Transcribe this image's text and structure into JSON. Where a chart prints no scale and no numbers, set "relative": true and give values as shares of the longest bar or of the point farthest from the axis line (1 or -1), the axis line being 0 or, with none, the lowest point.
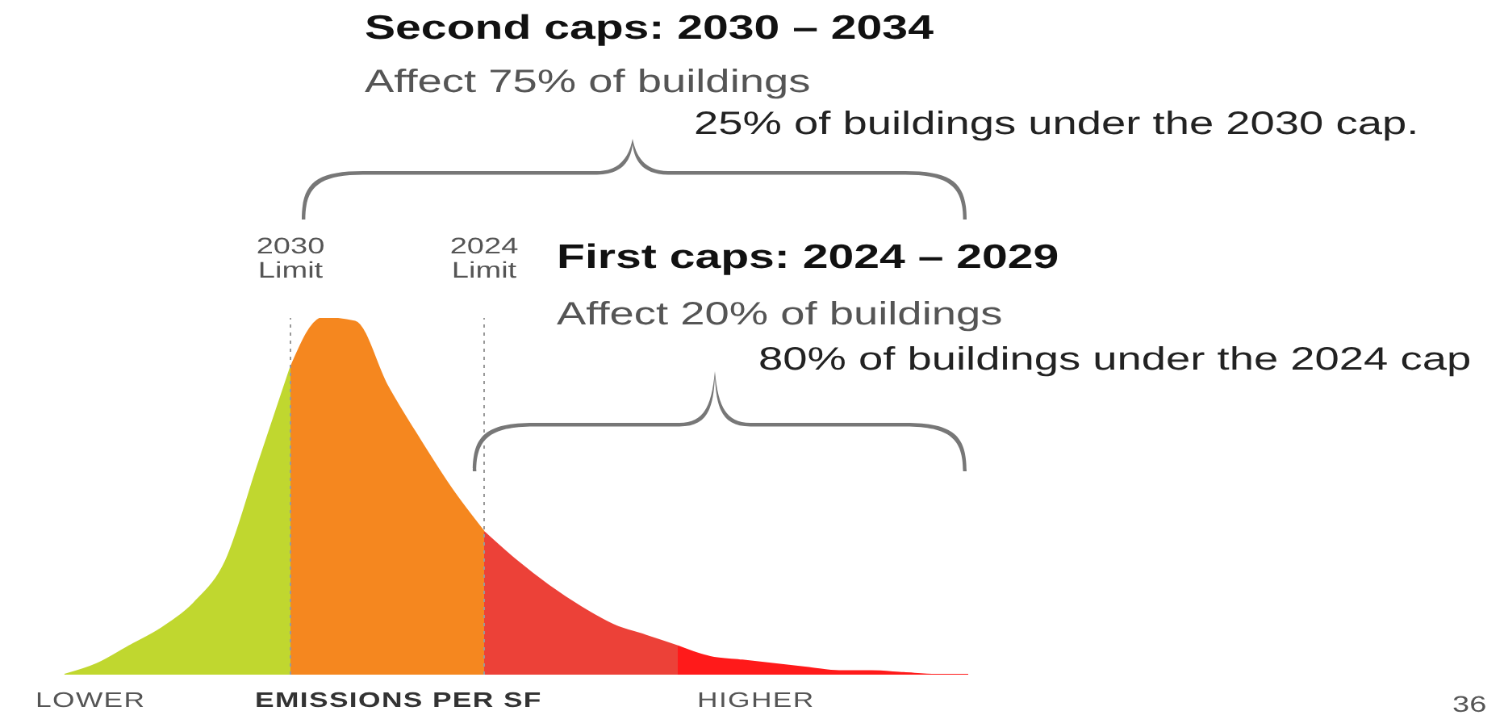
{
  "chart_data": {
    "type": "area",
    "relative": true,
    "title": "Second caps: 2030 – 2034",
    "xlabel": "EMISSIONS PER SF",
    "annotations": [
      "Affect 75% of buildings",
      "25% of buildings under the 2030 cap.",
      "First caps: 2024 – 2029",
      "Affect 20% of buildings",
      "80% of buildings under the 2024 cap",
      "LOWER",
      "HIGHER",
      "36"
    ],
    "categories": [
      null,
      null,
      null,
      null,
      null,
      null,
      null,
      "2030 Limit",
      null,
      null,
      null,
      null,
      null,
      "2024 Limit",
      null,
      null,
      null,
      null,
      null,
      null,
      null,
      null,
      null,
      null,
      null,
      null,
      null,
      null,
      null
    ],
    "series": [
      {
        "color": "#c0d72f",
        "values": [
          0,
          0.03,
          0.08,
          0.13,
          0.2,
          0.32,
          0.59,
          0.86,
          null,
          null,
          null,
          null,
          null,
          null,
          null,
          null,
          null,
          null,
          null,
          null,
          null,
          null,
          null,
          null,
          null,
          null,
          null,
          null,
          null
        ]
      },
      {
        "color": "#f5871f",
        "values": [
          null,
          null,
          null,
          null,
          null,
          null,
          null,
          0.86,
          1,
          0.99,
          0.81,
          0.66,
          0.52,
          0.4,
          null,
          null,
          null,
          null,
          null,
          null,
          null,
          null,
          null,
          null,
          null,
          null,
          null,
          null,
          null
        ]
      },
      {
        "color": "#ec4138",
        "values": [
          null,
          null,
          null,
          null,
          null,
          null,
          null,
          null,
          null,
          null,
          null,
          null,
          null,
          0.4,
          0.32,
          0.25,
          0.19,
          0.14,
          0.11,
          0.08,
          null,
          null,
          null,
          null,
          null,
          null,
          null,
          null,
          null
        ]
      },
      {
        "color": "#ff1a1a",
        "values": [
          null,
          null,
          null,
          null,
          null,
          null,
          null,
          null,
          null,
          null,
          null,
          null,
          null,
          null,
          null,
          null,
          null,
          null,
          null,
          0.08,
          0.05,
          0.04,
          0.03,
          0.02,
          0.01,
          0.01,
          0.005,
          0,
          0
        ]
      }
    ],
    "ref_lines": [
      {
        "axis": "x",
        "value": "2030 Limit",
        "line_style": "dotted",
        "color": "#999999"
      },
      {
        "axis": "x",
        "value": "2024 Limit",
        "line_style": "dotted",
        "color": "#999999"
      }
    ]
  }
}
